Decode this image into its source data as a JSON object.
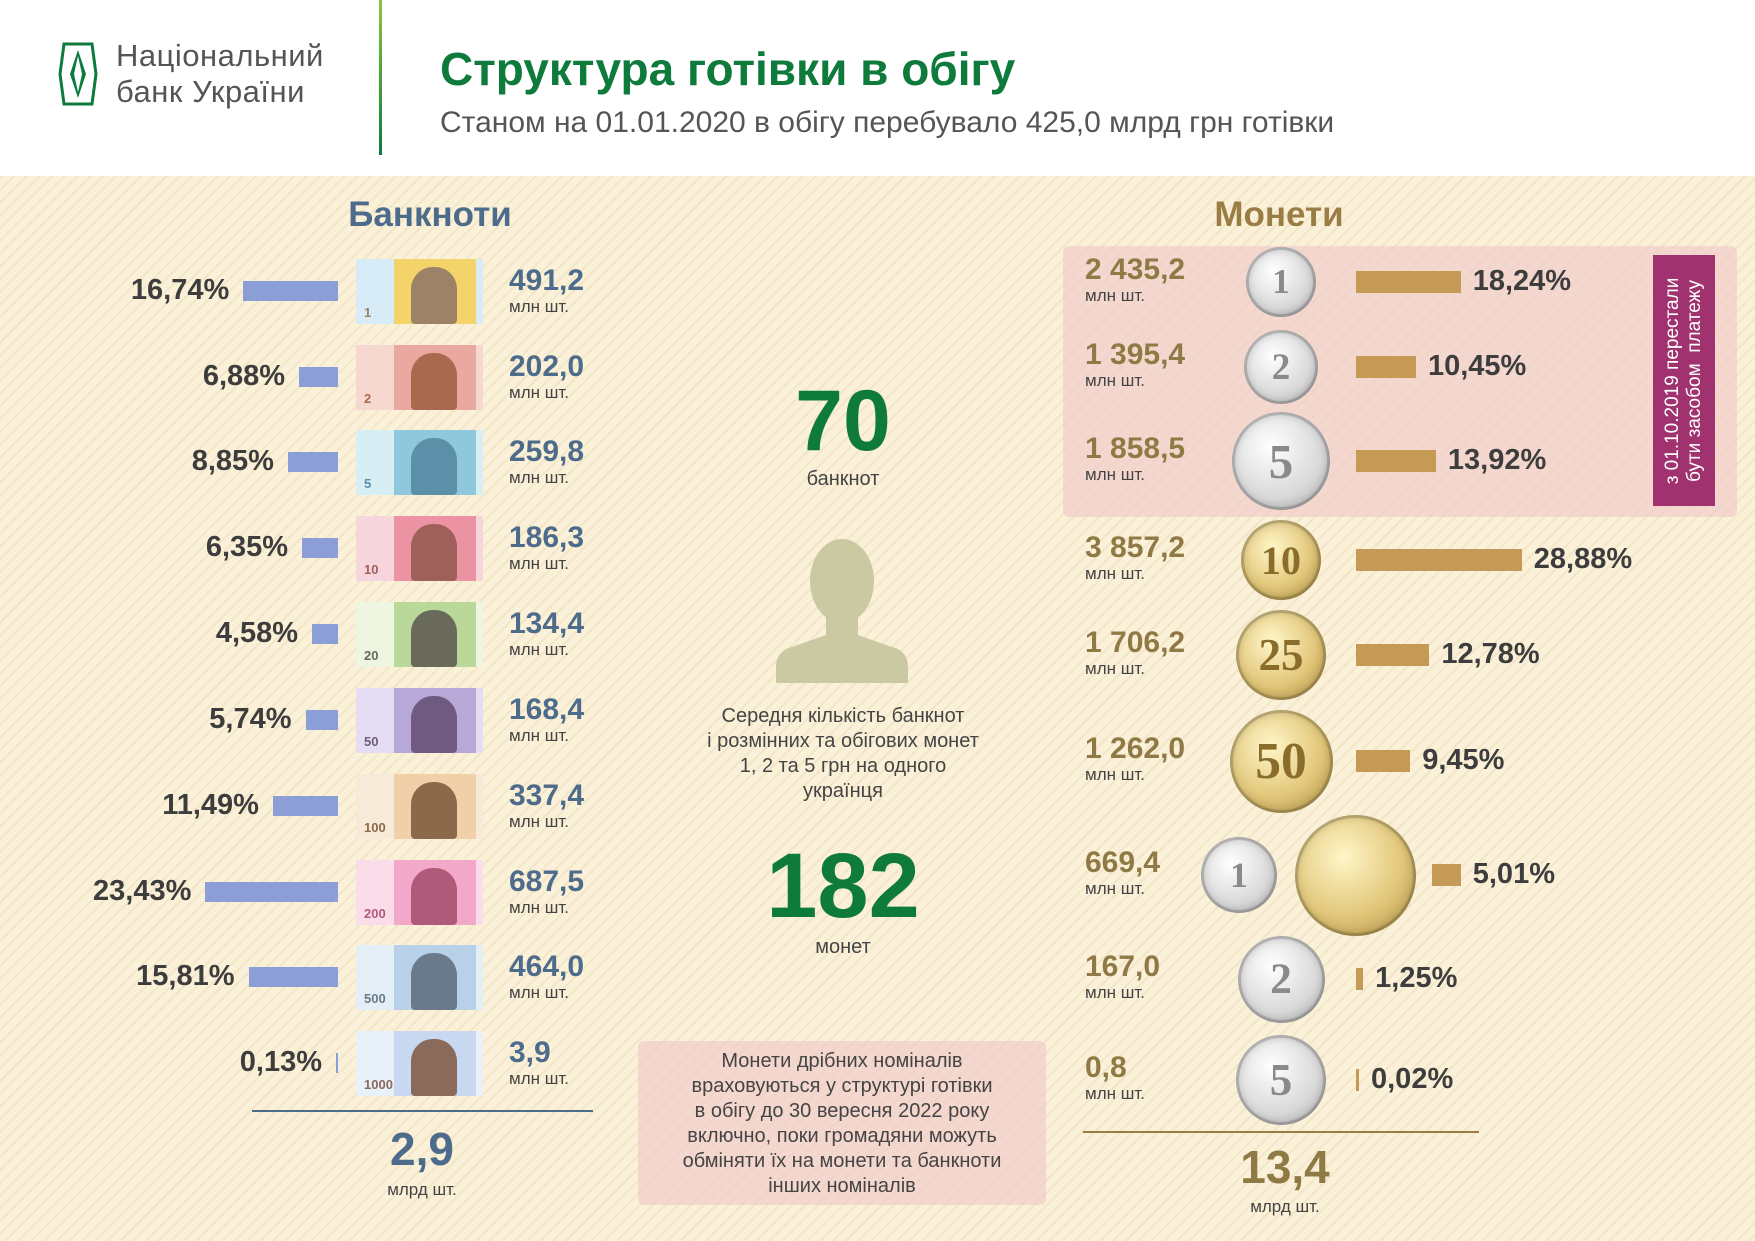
{
  "header": {
    "logo_text_line1": "Національний",
    "logo_text_line2": "банк України",
    "title": "Структура готівки в обігу",
    "subtitle": "Станом на 01.01.2020 в обігу перебувало 425,0  млрд  грн готівки"
  },
  "colors": {
    "brand_green": "#0e7a3b",
    "banknote_blue": "#4d6b8a",
    "banknote_bar": "#8b9fd6",
    "coin_gold": "#8f7a45",
    "coin_bar": "#c49a56",
    "purple": "#a0336f"
  },
  "banknotes": {
    "title": "Банкноти",
    "unit": "млн шт.",
    "items": [
      {
        "denomination": "1",
        "percent": "16,74%",
        "share": 16.74,
        "count": "491,2"
      },
      {
        "denomination": "2",
        "percent": "6,88%",
        "share": 6.88,
        "count": "202,0"
      },
      {
        "denomination": "5",
        "percent": "8,85%",
        "share": 8.85,
        "count": "259,8"
      },
      {
        "denomination": "10",
        "percent": "6,35%",
        "share": 6.35,
        "count": "186,3"
      },
      {
        "denomination": "20",
        "percent": "4,58%",
        "share": 4.58,
        "count": "134,4"
      },
      {
        "denomination": "50",
        "percent": "5,74%",
        "share": 5.74,
        "count": "168,4"
      },
      {
        "denomination": "100",
        "percent": "11,49%",
        "share": 11.49,
        "count": "337,4"
      },
      {
        "denomination": "200",
        "percent": "23,43%",
        "share": 23.43,
        "count": "687,5"
      },
      {
        "denomination": "500",
        "percent": "15,81%",
        "share": 15.81,
        "count": "464,0"
      },
      {
        "denomination": "1000",
        "percent": "0,13%",
        "share": 0.13,
        "count": "3,9"
      }
    ],
    "total": "2,9",
    "total_unit": "млрд шт."
  },
  "center": {
    "banknotes_per_person": "70",
    "banknotes_label": "банкнот",
    "description": "Середня кількість банкнот\nі  розмінних та обігових монет\n1, 2 та 5 грн на одного\nукраїнця",
    "coins_per_person": "182",
    "coins_label": "монет",
    "note": "Монети дрібних номіналів\nвраховуються у структурі готівки\nв  обігу  до 30 вересня 2022 року\nвключно, поки громадяни можуть\nобміняти їх  на монети та банкноти\nінших номіналів"
  },
  "coins": {
    "title": "Монети",
    "unit": "млн шт.",
    "withdrawn_note": "з 01.10.2019 перестали\nбути засобом  платежу",
    "items": [
      {
        "denomination": "1",
        "percent": "18,24%",
        "share": 18.24,
        "count": "2 435,2",
        "metal": "silver"
      },
      {
        "denomination": "2",
        "percent": "10,45%",
        "share": 10.45,
        "count": "1 395,4",
        "metal": "silver"
      },
      {
        "denomination": "5",
        "percent": "13,92%",
        "share": 13.92,
        "count": "1 858,5",
        "metal": "silver"
      },
      {
        "denomination": "10",
        "percent": "28,88%",
        "share": 28.88,
        "count": "3 857,2",
        "metal": "gold"
      },
      {
        "denomination": "25",
        "percent": "12,78%",
        "share": 12.78,
        "count": "1 706,2",
        "metal": "gold"
      },
      {
        "denomination": "50",
        "percent": "9,45%",
        "share": 9.45,
        "count": "1 262,0",
        "metal": "gold"
      },
      {
        "denomination": "1",
        "percent": "5,01%",
        "share": 5.01,
        "count": "669,4",
        "metal": "silver+gold"
      },
      {
        "denomination": "2",
        "percent": "1,25%",
        "share": 1.25,
        "count": "167,0",
        "metal": "silver"
      },
      {
        "denomination": "5",
        "percent": "0,02%",
        "share": 0.02,
        "count": "0,8",
        "metal": "silver"
      }
    ],
    "total": "13,4",
    "total_unit": "млрд шт."
  }
}
